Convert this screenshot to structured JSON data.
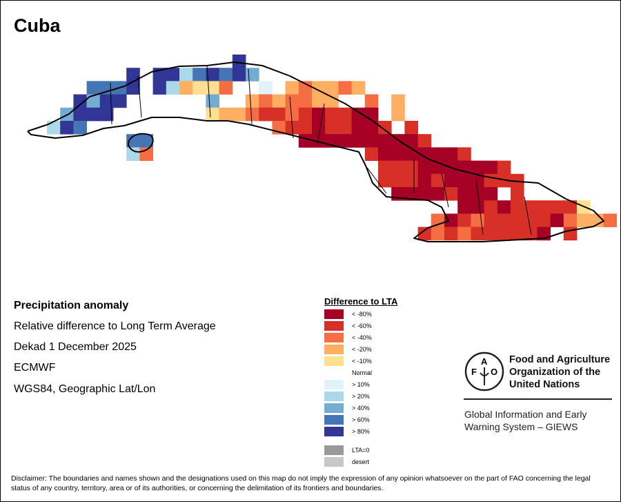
{
  "title": "Cuba",
  "info": {
    "product": "Precipitation anomaly",
    "description": "Relative difference to Long Term Average",
    "period": "Dekad 1 December 2025",
    "source": "ECMWF",
    "projection": "WGS84, Geographic Lat/Lon"
  },
  "legend": {
    "title": "Difference to LTA",
    "items": [
      {
        "code": "9",
        "label": "< -80%",
        "color": "#a50026"
      },
      {
        "code": "8",
        "label": "< -60%",
        "color": "#d73027"
      },
      {
        "code": "7",
        "label": "< -40%",
        "color": "#f46d43"
      },
      {
        "code": "6",
        "label": "< -20%",
        "color": "#fdae61"
      },
      {
        "code": "5",
        "label": "< -10%",
        "color": "#fee090"
      },
      {
        "code": ".",
        "label": "Normal",
        "color": "#ffffff"
      },
      {
        "code": "a",
        "label": "> 10%",
        "color": "#e0f3f8"
      },
      {
        "code": "b",
        "label": "> 20%",
        "color": "#abd9e9"
      },
      {
        "code": "c",
        "label": "> 40%",
        "color": "#74add1"
      },
      {
        "code": "d",
        "label": "> 60%",
        "color": "#4575b4"
      },
      {
        "code": "e",
        "label": "> 80%",
        "color": "#313695"
      }
    ],
    "extra": [
      {
        "label": "LTA=0",
        "color": "#999999"
      },
      {
        "label": "desert",
        "color": "#c8c8c8"
      }
    ]
  },
  "logo": {
    "letters": "FAO FIAT PANIS",
    "org_name": [
      "Food and Agriculture",
      "Organization of the",
      "United Nations"
    ],
    "system": [
      "Global Information and Early",
      "Warning System – GIEWS"
    ]
  },
  "disclaimer": "Disclaimer: The boundaries and names shown and the designations used on this map do not imply the expression of any opinion whatsoever on the part of FAO concerning the legal status of any country, territory, area or of its authorities, or concerning the delimitation of its frontiers and boundaries."
}
